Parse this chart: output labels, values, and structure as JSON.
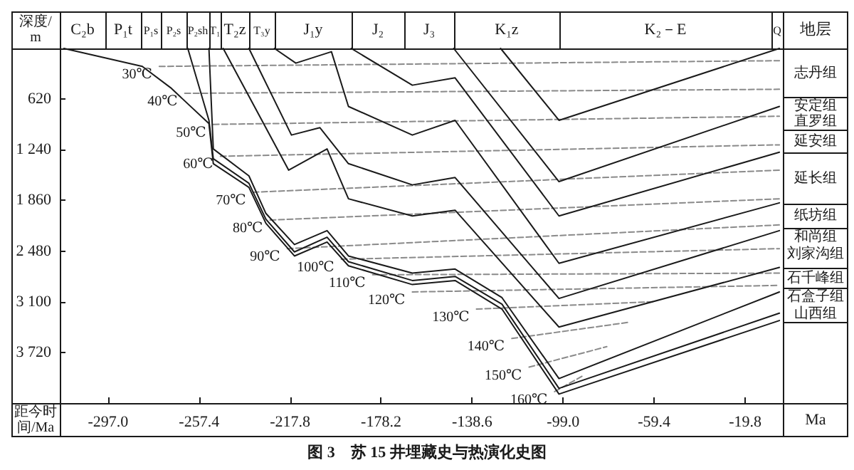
{
  "chart_data": {
    "type": "line",
    "title": "图 3　苏 15 井埋藏史与热演化史图",
    "xlabel": "距今时间/Ma",
    "ylabel": "深度/m",
    "xlim": [
      -318,
      -3.4
    ],
    "ylim": [
      4340,
      0
    ],
    "xticks": [
      {
        "value": -297,
        "label": "-297.0"
      },
      {
        "value": -257.4,
        "label": "-257.4"
      },
      {
        "value": -217.8,
        "label": "-217.8"
      },
      {
        "value": -178.2,
        "label": "-178.2"
      },
      {
        "value": -138.6,
        "label": "-138.6"
      },
      {
        "value": -99,
        "label": "-99.0"
      },
      {
        "value": -59.4,
        "label": "-59.4"
      },
      {
        "value": -19.8,
        "label": "-19.8"
      }
    ],
    "yticks": [
      620,
      {
        "value": 1240,
        "label": "1 240"
      },
      {
        "value": 1860,
        "label": "1 860"
      },
      {
        "value": 2480,
        "label": "2 480"
      },
      {
        "value": 3100,
        "label": "3 100"
      },
      {
        "value": 3720,
        "label": "3 720"
      }
    ],
    "series": [
      {
        "color": "#1a1a1a",
        "x": [
          -316.2,
          -282.1,
          -269.8,
          -253.1,
          -251.2,
          -235.7,
          -228.3,
          -215.9,
          -201.7,
          -192.4,
          -164.6,
          -146.0,
          -125.6,
          -100.8,
          -4.9
        ],
        "values": [
          0,
          220,
          480,
          920,
          1410,
          1700,
          2140,
          2540,
          2370,
          2660,
          2890,
          2840,
          3190,
          4230,
          3330
        ]
      },
      {
        "color": "#1a1a1a",
        "x": [
          -262.3,
          -253.1,
          -251.2,
          -235.7,
          -228.3,
          -215.9,
          -201.7,
          -192.4,
          -164.6,
          -146.0,
          -125.6,
          -100.8,
          -4.9
        ],
        "values": [
          0,
          880,
          1350,
          1650,
          2090,
          2490,
          2310,
          2610,
          2840,
          2790,
          3130,
          4160,
          3240
        ]
      },
      {
        "color": "#1a1a1a",
        "x": [
          -253.1,
          -251.2,
          -235.7,
          -228.3,
          -215.9,
          -201.7,
          -192.4,
          -164.6,
          -146.0,
          -125.6,
          -100.8,
          -4.9
        ],
        "values": [
          0,
          1230,
          1560,
          2020,
          2400,
          2230,
          2540,
          2750,
          2700,
          3050,
          4040,
          2980
        ]
      },
      {
        "color": "#1a1a1a",
        "x": [
          -246.9,
          -218.4,
          -201.7,
          -192.4,
          -164.6,
          -146.0,
          -100.8,
          -4.9
        ],
        "values": [
          0,
          1490,
          1230,
          1840,
          2050,
          1980,
          3410,
          2680
        ]
      },
      {
        "color": "#1a1a1a",
        "x": [
          -235.7,
          -217.2,
          -204.8,
          -192.4,
          -164.6,
          -146.0,
          -100.8,
          -4.9
        ],
        "values": [
          0,
          1060,
          970,
          1410,
          1670,
          1580,
          3060,
          2230
        ]
      },
      {
        "color": "#1a1a1a",
        "x": [
          -224.6,
          -215.3,
          -199.8,
          -192.4,
          -164.6,
          -146.0,
          -100.8,
          -4.9
        ],
        "values": [
          0,
          180,
          40,
          710,
          1060,
          880,
          2630,
          1890
        ]
      },
      {
        "color": "#1a1a1a",
        "x": [
          -191.2,
          -164.6,
          -146.0,
          -100.8,
          -4.9
        ],
        "values": [
          0,
          450,
          360,
          2050,
          1270
        ]
      },
      {
        "color": "#1a1a1a",
        "x": [
          -146.6,
          -100.8,
          -4.9
        ],
        "values": [
          0,
          1630,
          710
        ]
      },
      {
        "color": "#1a1a1a",
        "x": [
          -126.2,
          -100.8,
          -4.9
        ],
        "values": [
          0,
          880,
          0
        ]
      },
      {
        "name": "30℃",
        "color": "#8a8a8a",
        "line_style": "dashed",
        "x": [
          -274.7,
          -4.9
        ],
        "values": [
          220,
          150
        ]
      },
      {
        "name": "40℃",
        "color": "#8a8a8a",
        "line_style": "dashed",
        "x": [
          -263.6,
          -4.9
        ],
        "values": [
          550,
          500
        ]
      },
      {
        "name": "50℃",
        "color": "#8a8a8a",
        "line_style": "dashed",
        "x": [
          -251.2,
          -4.9
        ],
        "values": [
          930,
          830
        ]
      },
      {
        "name": "60℃",
        "color": "#8a8a8a",
        "line_style": "dashed",
        "x": [
          -248.1,
          -4.9
        ],
        "values": [
          1320,
          1180
        ]
      },
      {
        "name": "70℃",
        "color": "#8a8a8a",
        "line_style": "dashed",
        "x": [
          -233.9,
          -4.9
        ],
        "values": [
          1760,
          1490
        ]
      },
      {
        "name": "80℃",
        "color": "#8a8a8a",
        "line_style": "dashed",
        "x": [
          -226.5,
          -4.9
        ],
        "values": [
          2100,
          1840
        ]
      },
      {
        "name": "90℃",
        "color": "#8a8a8a",
        "line_style": "dashed",
        "x": [
          -219.0,
          -4.9
        ],
        "values": [
          2450,
          2160
        ]
      },
      {
        "name": "100℃",
        "color": "#8a8a8a",
        "line_style": "dashed",
        "x": [
          -195.5,
          -4.9
        ],
        "values": [
          2580,
          2450
        ]
      },
      {
        "name": "110℃",
        "color": "#8a8a8a",
        "line_style": "dashed",
        "x": [
          -181.9,
          -4.9
        ],
        "values": [
          2770,
          2750
        ]
      },
      {
        "name": "120℃",
        "color": "#8a8a8a",
        "line_style": "dashed",
        "x": [
          -164.6,
          -4.9
        ],
        "values": [
          2980,
          2900
        ]
      },
      {
        "name": "130℃",
        "color": "#8a8a8a",
        "line_style": "dashed",
        "x": [
          -136.7,
          -60
        ],
        "values": [
          3190,
          3100
        ]
      },
      {
        "name": "140℃",
        "color": "#8a8a8a",
        "line_style": "dashed",
        "x": [
          -121.3,
          -70
        ],
        "values": [
          3550,
          3350
        ]
      },
      {
        "name": "150℃",
        "color": "#8a8a8a",
        "line_style": "dashed",
        "x": [
          -113.8,
          -80
        ],
        "values": [
          3900,
          3650
        ]
      },
      {
        "name": "160℃",
        "color": "#8a8a8a",
        "line_style": "dashed",
        "x": [
          -102.7,
          -90
        ],
        "values": [
          4200,
          4000
        ]
      }
    ],
    "annotations": [
      "C₂b",
      "P₁t",
      "P₁s",
      "P₂s",
      "P₂sh",
      "T₁",
      "T₂z",
      "T₃y",
      "J₁y",
      "J₂",
      "J₃",
      "K₁z",
      "K₂－E",
      "Q",
      "地层",
      "志丹组",
      "安定组",
      "直罗组",
      "延安组",
      "延长组",
      "纸坊组",
      "和尚组",
      "刘家沟组",
      "石千峰组",
      "石盒子组",
      "山西组",
      "Ma"
    ]
  }
}
